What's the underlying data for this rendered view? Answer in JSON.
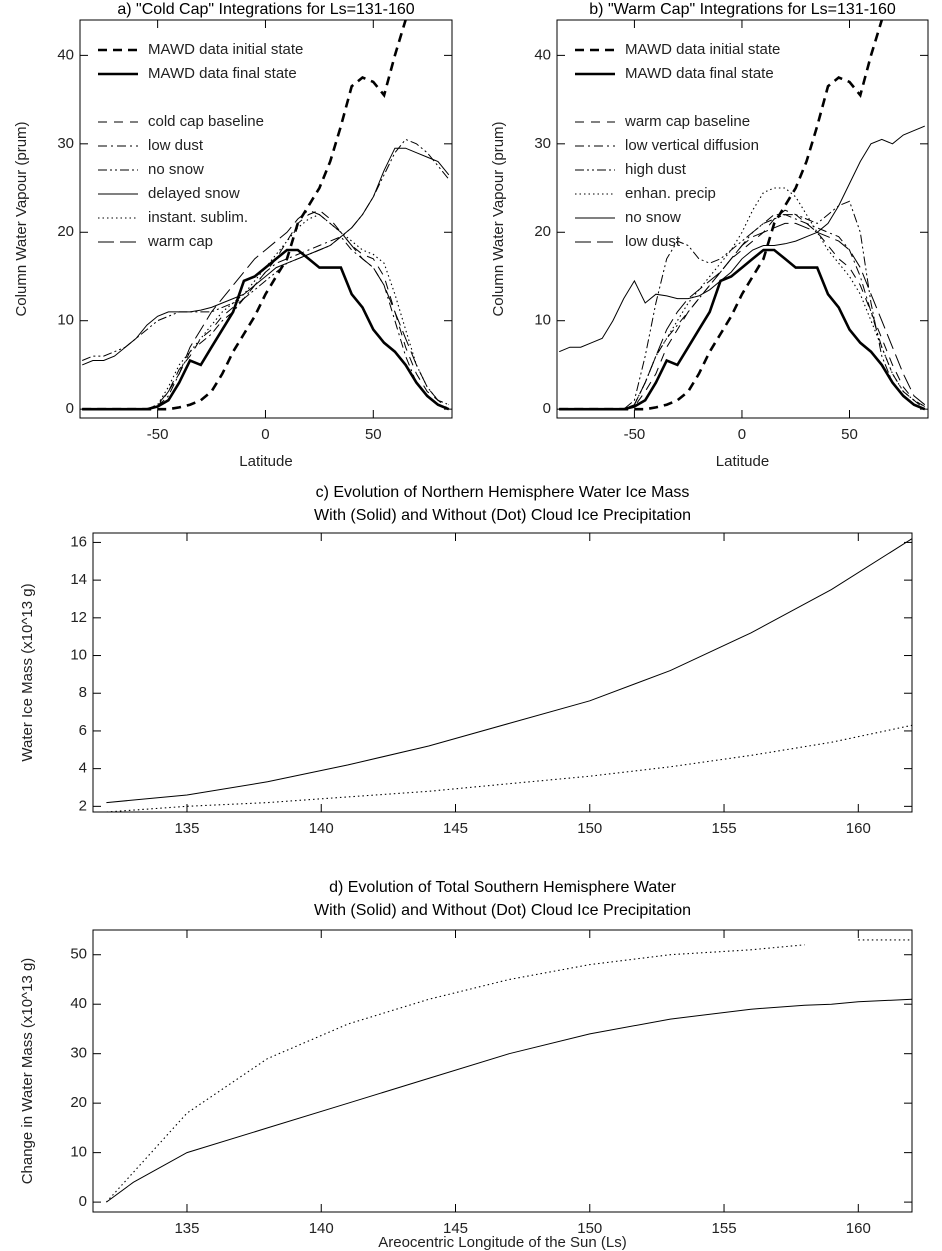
{
  "chart_data": [
    {
      "type": "line",
      "title": "a) \"Cold Cap\" Integrations for Ls=131-160",
      "x_label": "Latitude",
      "y_label": "Column Water Vapour (prum)",
      "x": [
        -85,
        -80,
        -75,
        -70,
        -65,
        -60,
        -55,
        -50,
        -45,
        -40,
        -35,
        -30,
        -25,
        -20,
        -15,
        -10,
        -5,
        0,
        5,
        10,
        15,
        20,
        25,
        30,
        35,
        40,
        45,
        50,
        55,
        60,
        65,
        70,
        75,
        80,
        85
      ],
      "xlim": [
        -86,
        86.5
      ],
      "ylim": [
        -1,
        44
      ],
      "xticks": [
        -50,
        0,
        50
      ],
      "yticks": [
        0,
        10,
        20,
        30,
        40
      ],
      "legend": "upper left",
      "series": [
        {
          "name": "MAWD data initial state",
          "color": "#000000",
          "style": "thick-dash",
          "values": [
            0,
            0,
            0,
            0,
            0,
            0,
            0,
            0,
            0,
            0.2,
            0.5,
            1,
            2,
            4,
            6.5,
            8.5,
            10.5,
            13,
            15,
            17,
            21,
            23,
            25,
            28,
            32,
            36.5,
            37.5,
            37,
            35.5,
            40,
            44,
            null,
            null,
            null,
            null
          ]
        },
        {
          "name": "MAWD data final state",
          "color": "#000000",
          "style": "thick-solid",
          "values": [
            0,
            0,
            0,
            0,
            0,
            0,
            0,
            0.3,
            1,
            3,
            5.5,
            5,
            7,
            9,
            11,
            14.5,
            15,
            16,
            17,
            18,
            18,
            17,
            16,
            16,
            16,
            13,
            11.5,
            9,
            7.5,
            6.5,
            5,
            3,
            1.5,
            0.5,
            0
          ]
        },
        {
          "name": "cold cap baseline",
          "color": "#000000",
          "style": "dash",
          "values": [
            0,
            0,
            0,
            0,
            0,
            0,
            0,
            0.5,
            2,
            4.5,
            6,
            8,
            9,
            10.5,
            11.5,
            12.5,
            14,
            15.5,
            17,
            19,
            21,
            22,
            22.5,
            21.5,
            20,
            18.5,
            17.5,
            17,
            15,
            11,
            7,
            4,
            2,
            1,
            0.5
          ]
        },
        {
          "name": "low dust",
          "color": "#000000",
          "style": "dashdot",
          "values": [
            0,
            0,
            0,
            0,
            0,
            0,
            0,
            0.3,
            1.5,
            4,
            6.5,
            7.5,
            8.5,
            10,
            11,
            12.5,
            14,
            15.5,
            16.5,
            17,
            17.5,
            18,
            18.5,
            19,
            19.5,
            18,
            17,
            16,
            14,
            10,
            6,
            3,
            1.5,
            0.5,
            0
          ]
        },
        {
          "name": "no snow",
          "color": "#000000",
          "style": "dashdotdot",
          "values": [
            5.5,
            6,
            6,
            6.5,
            7,
            8,
            9,
            10,
            10.5,
            11,
            11,
            11,
            11,
            11.5,
            12,
            12.5,
            13.5,
            14.5,
            15.5,
            16.5,
            17,
            17.5,
            18,
            18.5,
            19.5,
            20.5,
            22,
            24,
            26.5,
            29,
            30.5,
            30,
            29,
            27.5,
            26
          ]
        },
        {
          "name": "delayed snow",
          "color": "#000000",
          "style": "solid",
          "values": [
            5,
            5.5,
            5.5,
            6,
            7,
            8,
            9.5,
            10.5,
            11,
            11,
            11,
            11.2,
            11.5,
            12,
            12.5,
            13,
            14,
            15,
            16,
            16.5,
            17,
            17.5,
            18,
            18.5,
            19.5,
            20.5,
            22,
            24,
            27,
            29.5,
            29.5,
            29,
            28.5,
            28,
            26.5
          ]
        },
        {
          "name": "instant. sublim.",
          "color": "#000000",
          "style": "dotted",
          "values": [
            0,
            0,
            0,
            0,
            0,
            0,
            0,
            0.5,
            2.5,
            5,
            6.5,
            8,
            9.5,
            11,
            12,
            13,
            14.5,
            16,
            17.5,
            19,
            20.5,
            21.5,
            22,
            21,
            20,
            19,
            18,
            17.5,
            16.5,
            13,
            9,
            5,
            2.5,
            1,
            0.5
          ]
        },
        {
          "name": "warm cap",
          "color": "#000000",
          "style": "longdash",
          "values": [
            0,
            0,
            0,
            0,
            0,
            0,
            0,
            0.3,
            2,
            4,
            7,
            9,
            11,
            12.5,
            14,
            15.5,
            17,
            18,
            19,
            20,
            21.5,
            22.5,
            22,
            21,
            20,
            18.5,
            17,
            16,
            14,
            11,
            8,
            5,
            2.5,
            1,
            0
          ]
        }
      ]
    },
    {
      "type": "line",
      "title": "b) \"Warm Cap\" Integrations for Ls=131-160",
      "x_label": "Latitude",
      "y_label": "Column Water Vapour (prum)",
      "x": [
        -85,
        -80,
        -75,
        -70,
        -65,
        -60,
        -55,
        -50,
        -45,
        -40,
        -35,
        -30,
        -25,
        -20,
        -15,
        -10,
        -5,
        0,
        5,
        10,
        15,
        20,
        25,
        30,
        35,
        40,
        45,
        50,
        55,
        60,
        65,
        70,
        75,
        80,
        85
      ],
      "xlim": [
        -86,
        86.5
      ],
      "ylim": [
        -1,
        44
      ],
      "xticks": [
        -50,
        0,
        50
      ],
      "yticks": [
        0,
        10,
        20,
        30,
        40
      ],
      "legend": "upper left",
      "series": [
        {
          "name": "MAWD data initial state",
          "color": "#000000",
          "style": "thick-dash",
          "values": [
            0,
            0,
            0,
            0,
            0,
            0,
            0,
            0,
            0,
            0.2,
            0.5,
            1,
            2,
            4,
            6.5,
            8.5,
            10.5,
            13,
            15,
            17,
            21,
            23,
            25,
            28,
            32,
            36.5,
            37.5,
            37,
            35.5,
            40,
            44,
            null,
            null,
            null,
            null
          ]
        },
        {
          "name": "MAWD data final state",
          "color": "#000000",
          "style": "thick-solid",
          "values": [
            0,
            0,
            0,
            0,
            0,
            0,
            0,
            0.3,
            1,
            3,
            5.5,
            5,
            7,
            9,
            11,
            14.5,
            15,
            16,
            17,
            18,
            18,
            17,
            16,
            16,
            16,
            13,
            11.5,
            9,
            7.5,
            6.5,
            5,
            3,
            1.5,
            0.5,
            0
          ]
        },
        {
          "name": "warm cap baseline",
          "color": "#000000",
          "style": "dash",
          "values": [
            0,
            0,
            0,
            0,
            0,
            0,
            0,
            0.3,
            2,
            4,
            7,
            9,
            11,
            12.5,
            14,
            15.5,
            17,
            18,
            19,
            20,
            21.5,
            22.5,
            22,
            21,
            20,
            18.5,
            17,
            16,
            14,
            11,
            8,
            5,
            2.5,
            1,
            0
          ]
        },
        {
          "name": "low vertical diffusion",
          "color": "#000000",
          "style": "dashdot",
          "values": [
            0,
            0,
            0,
            0,
            0,
            0,
            0,
            0.5,
            3,
            6,
            8,
            9.5,
            11,
            12.5,
            14,
            15.5,
            17,
            18.5,
            20,
            21,
            22,
            22,
            21.5,
            21,
            20.5,
            20,
            19.5,
            18,
            15,
            11,
            7,
            4,
            2,
            1,
            0.3
          ]
        },
        {
          "name": "high dust",
          "color": "#000000",
          "style": "dashdotdot",
          "values": [
            0,
            0,
            0,
            0,
            0,
            0,
            0,
            1,
            6,
            12,
            17,
            19,
            18.5,
            17,
            16.5,
            17,
            18,
            19,
            20,
            21,
            21.5,
            22,
            22,
            21.5,
            21,
            22,
            23,
            23.5,
            20,
            12,
            6,
            3,
            1.5,
            0.5,
            0
          ]
        },
        {
          "name": "enhan. precip",
          "color": "#000000",
          "style": "dotted",
          "values": [
            0,
            0,
            0,
            0,
            0,
            0,
            0,
            0.5,
            3,
            6,
            8,
            10,
            12,
            13.5,
            15,
            16.5,
            18,
            20,
            22.5,
            24.5,
            25,
            25,
            24,
            22,
            20,
            18,
            16.5,
            15,
            13,
            10,
            7,
            4,
            2,
            1,
            0.3
          ]
        },
        {
          "name": "no snow",
          "color": "#000000",
          "style": "solid",
          "values": [
            6.5,
            7,
            7,
            7.5,
            8,
            10,
            12.5,
            14.5,
            12,
            13,
            12.8,
            12.5,
            12.5,
            12.8,
            13.5,
            14.5,
            15.5,
            17,
            18,
            18.5,
            18.5,
            18.7,
            19,
            19.5,
            20,
            21,
            23,
            25.5,
            28,
            30,
            30.5,
            30,
            31,
            31.5,
            32
          ]
        },
        {
          "name": "low dust",
          "color": "#000000",
          "style": "longdash",
          "values": [
            0,
            0,
            0,
            0,
            0,
            0,
            0,
            0.5,
            3,
            6,
            9,
            11,
            12.5,
            13.5,
            14.5,
            15.5,
            17,
            18.5,
            19.5,
            20,
            20.5,
            21,
            21,
            20.5,
            20,
            19.5,
            19,
            18,
            16,
            13,
            10,
            7,
            4,
            1.5,
            0.5
          ]
        }
      ]
    },
    {
      "type": "line",
      "title": "c) Evolution of Northern Hemisphere Water Ice Mass",
      "subtitle": "With (Solid) and Without (Dot) Cloud Ice Precipitation",
      "y_label": "Water Ice Mass (x10^13 g)",
      "x": [
        132,
        135,
        138,
        141,
        144,
        147,
        150,
        153,
        156,
        159,
        162
      ],
      "xlim": [
        131.5,
        162
      ],
      "ylim": [
        1.7,
        16.5
      ],
      "xticks": [
        135,
        140,
        145,
        150,
        155,
        160
      ],
      "yticks": [
        2,
        4,
        6,
        8,
        10,
        12,
        14,
        16
      ],
      "series": [
        {
          "color": "#000000",
          "style": "solid",
          "values": [
            2.2,
            2.6,
            3.3,
            4.2,
            5.2,
            6.4,
            7.6,
            9.2,
            11.2,
            13.5,
            16.2
          ]
        },
        {
          "color": "#000000",
          "style": "dotted",
          "values": [
            1.7,
            2.0,
            2.2,
            2.5,
            2.8,
            3.2,
            3.6,
            4.1,
            4.7,
            5.4,
            6.3
          ]
        }
      ]
    },
    {
      "type": "line",
      "title": "d) Evolution of Total Southern Hemisphere Water",
      "subtitle": "With (Solid) and Without (Dot) Cloud Ice Precipitation",
      "x_label": "Areocentric Longitude of the Sun (Ls)",
      "y_label": "Change in Water Mass (x10^13 g)",
      "x": [
        132,
        133,
        135,
        138,
        141,
        144,
        147,
        150,
        153,
        156,
        158,
        159,
        160,
        162
      ],
      "xlim": [
        131.5,
        162
      ],
      "ylim": [
        -2,
        55
      ],
      "xticks": [
        135,
        140,
        145,
        150,
        155,
        160
      ],
      "yticks": [
        0,
        10,
        20,
        30,
        40,
        50
      ],
      "series": [
        {
          "color": "#000000",
          "style": "solid",
          "values": [
            0,
            4,
            10,
            15,
            20,
            25,
            30,
            34,
            37,
            39,
            39.8,
            40,
            40.5,
            41
          ]
        },
        {
          "color": "#000000",
          "style": "dotted",
          "values": [
            0,
            6,
            18,
            29,
            36,
            41,
            45,
            48,
            50,
            51,
            52,
            null,
            53,
            53
          ]
        }
      ]
    }
  ]
}
